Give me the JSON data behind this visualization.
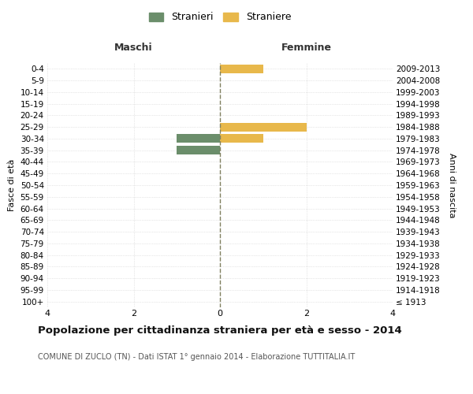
{
  "age_groups": [
    "100+",
    "95-99",
    "90-94",
    "85-89",
    "80-84",
    "75-79",
    "70-74",
    "65-69",
    "60-64",
    "55-59",
    "50-54",
    "45-49",
    "40-44",
    "35-39",
    "30-34",
    "25-29",
    "20-24",
    "15-19",
    "10-14",
    "5-9",
    "0-4"
  ],
  "birth_years": [
    "≤ 1913",
    "1914-1918",
    "1919-1923",
    "1924-1928",
    "1929-1933",
    "1934-1938",
    "1939-1943",
    "1944-1948",
    "1949-1953",
    "1954-1958",
    "1959-1963",
    "1964-1968",
    "1969-1973",
    "1974-1978",
    "1979-1983",
    "1984-1988",
    "1989-1993",
    "1994-1998",
    "1999-2003",
    "2004-2008",
    "2009-2013"
  ],
  "maschi": [
    0,
    0,
    0,
    0,
    0,
    0,
    0,
    0,
    0,
    0,
    0,
    0,
    0,
    1,
    1,
    0,
    0,
    0,
    0,
    0,
    0
  ],
  "femmine": [
    0,
    0,
    0,
    0,
    0,
    0,
    0,
    0,
    0,
    0,
    0,
    0,
    0,
    0,
    1,
    2,
    0,
    0,
    0,
    0,
    1
  ],
  "maschi_color": "#6b8e6b",
  "femmine_color": "#e8b84b",
  "title": "Popolazione per cittadinanza straniera per età e sesso - 2014",
  "subtitle": "COMUNE DI ZUCLO (TN) - Dati ISTAT 1° gennaio 2014 - Elaborazione TUTTITALIA.IT",
  "xlabel_left": "Maschi",
  "xlabel_right": "Femmine",
  "ylabel_left": "Fasce di età",
  "ylabel_right": "Anni di nascita",
  "legend_maschi": "Stranieri",
  "legend_femmine": "Straniere",
  "xlim": 4,
  "background_color": "#ffffff",
  "grid_color": "#d0d0d0",
  "center_line_color": "#808060",
  "bar_height": 0.75
}
